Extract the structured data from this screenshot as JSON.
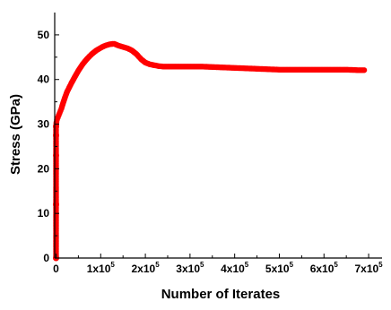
{
  "chart_data": {
    "type": "scatter",
    "xlabel": "Number of Iterates",
    "ylabel": "Stress (GPa)",
    "xlim": [
      -3000,
      730000
    ],
    "ylim": [
      0,
      55
    ],
    "x_ticks": [
      {
        "value": 0,
        "mantissa": "0",
        "exp": ""
      },
      {
        "value": 100000,
        "mantissa": "1x10",
        "exp": "5"
      },
      {
        "value": 200000,
        "mantissa": "2x10",
        "exp": "5"
      },
      {
        "value": 300000,
        "mantissa": "3x10",
        "exp": "5"
      },
      {
        "value": 400000,
        "mantissa": "4x10",
        "exp": "5"
      },
      {
        "value": 500000,
        "mantissa": "5x10",
        "exp": "5"
      },
      {
        "value": 600000,
        "mantissa": "6x10",
        "exp": "5"
      },
      {
        "value": 700000,
        "mantissa": "7x10",
        "exp": "5"
      }
    ],
    "y_ticks": [
      0,
      10,
      20,
      30,
      40,
      50
    ],
    "grid": false,
    "legend": "none",
    "series": [
      {
        "color": "#ff0000",
        "x": [
          0,
          0,
          0,
          0,
          0,
          1000,
          2000,
          4000,
          6000,
          8000,
          10000,
          12000,
          15000,
          20000,
          25000,
          30000,
          35000,
          40000,
          50000,
          60000,
          70000,
          80000,
          90000,
          100000,
          110000,
          120000,
          130000,
          140000,
          150000,
          160000,
          170000,
          180000,
          190000,
          200000,
          210000,
          220000,
          230000,
          240000,
          250000,
          275000,
          300000,
          325000,
          350000,
          375000,
          400000,
          425000,
          450000,
          475000,
          500000,
          525000,
          550000,
          575000,
          600000,
          625000,
          650000,
          675000,
          690000
        ],
        "y": [
          0,
          12,
          23,
          27.5,
          29.5,
          30.5,
          31,
          31.5,
          32,
          32.5,
          33,
          33.5,
          34.5,
          36,
          37.3,
          38.3,
          39.3,
          40.2,
          42,
          43.5,
          44.7,
          45.7,
          46.5,
          47.1,
          47.6,
          47.9,
          48,
          47.6,
          47.3,
          47,
          46.5,
          45.7,
          44.6,
          43.8,
          43.4,
          43.2,
          43,
          42.9,
          42.9,
          42.9,
          42.9,
          42.9,
          42.8,
          42.7,
          42.6,
          42.5,
          42.4,
          42.3,
          42.2,
          42.2,
          42.2,
          42.2,
          42.2,
          42.2,
          42.2,
          42.1,
          42.1
        ]
      }
    ]
  }
}
